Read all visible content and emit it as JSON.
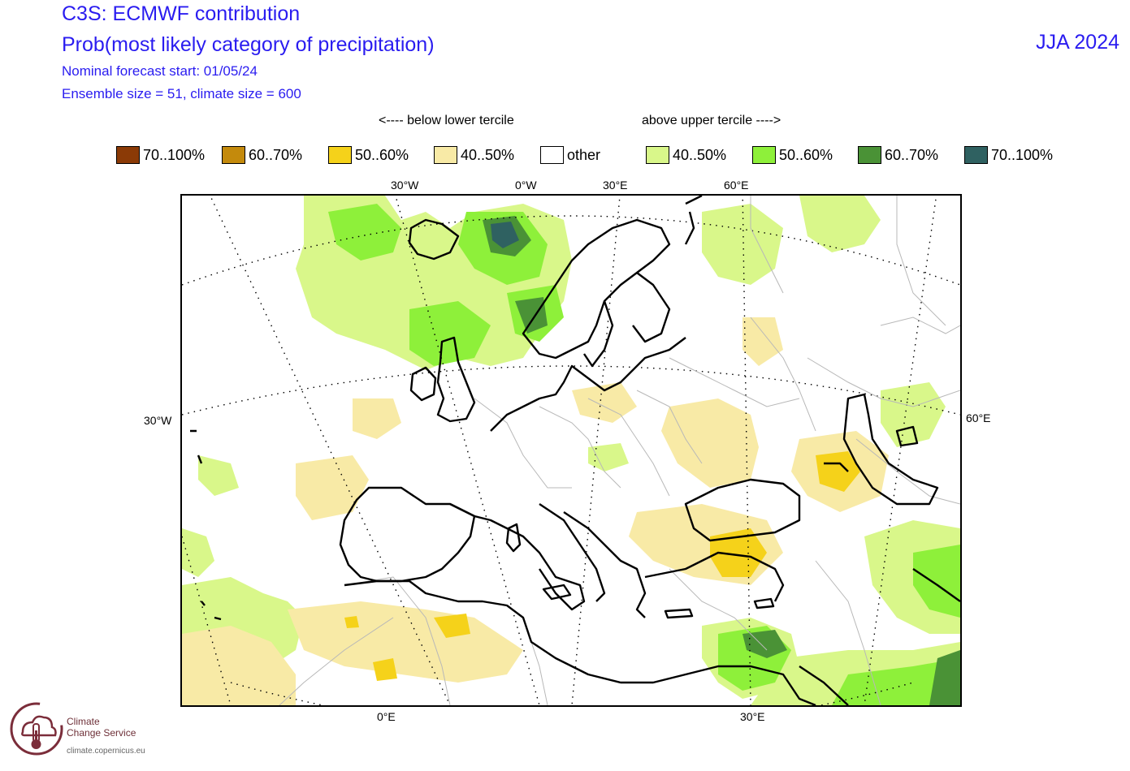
{
  "header": {
    "title": "C3S: ECMWF contribution",
    "subtitle": "Prob(most likely category of precipitation)",
    "forecast_start": "Nominal forecast start: 01/05/24",
    "ensemble": "Ensemble size = 51, climate size = 600",
    "season": "JJA 2024"
  },
  "legend": {
    "below_label": "<---- below lower tercile",
    "above_label": "above upper tercile ---->",
    "items": [
      {
        "label": "70..100%",
        "color": "#8b3a06"
      },
      {
        "label": "60..70%",
        "color": "#c48a0c"
      },
      {
        "label": "50..60%",
        "color": "#f5d21a"
      },
      {
        "label": "40..50%",
        "color": "#f8eaa6"
      },
      {
        "label": "other",
        "color": "#ffffff"
      },
      {
        "label": "40..50%",
        "color": "#d9f78a"
      },
      {
        "label": "50..60%",
        "color": "#8ef03a"
      },
      {
        "label": "60..70%",
        "color": "#4a9236"
      },
      {
        "label": "70..100%",
        "color": "#2f6161"
      }
    ]
  },
  "axes": {
    "top": [
      "30°W",
      "0°W",
      "30°E",
      "60°E"
    ],
    "left": "30°W",
    "right": "60°E",
    "bottom": [
      "0°E",
      "30°E"
    ]
  },
  "map": {
    "region": "Europe",
    "colors": {
      "coast": "#000000",
      "border": "#b8b8b8",
      "graticule": "#000000"
    }
  },
  "branding": {
    "name_line1": "Climate",
    "name_line2": "Change Service",
    "url": "climate.copernicus.eu",
    "logo_icon": "thermometer-cloud-icon",
    "logo_color": "#7b2d3a"
  }
}
